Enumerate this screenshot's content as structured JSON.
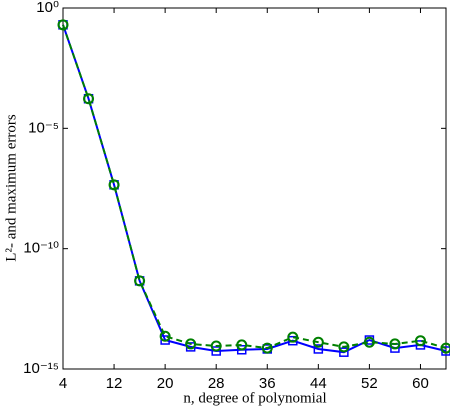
{
  "chart_data": {
    "type": "line",
    "xlabel": "n, degree of polynomial",
    "ylabel": "L²- and maximum errors",
    "log_y": true,
    "x": [
      4,
      8,
      12,
      16,
      20,
      24,
      28,
      32,
      36,
      40,
      44,
      48,
      52,
      56,
      60,
      64
    ],
    "series": [
      {
        "name": "L2 error",
        "color": "#0000ff",
        "marker": "square",
        "dashed": false,
        "values": [
          0.2,
          0.00017,
          4.5e-08,
          4.6e-12,
          1.6e-14,
          8.3e-15,
          5.6e-15,
          6.3e-15,
          6.8e-15,
          1.5e-14,
          6.8e-15,
          5e-15,
          1.6e-14,
          7.4e-15,
          1e-14,
          5.6e-15
        ]
      },
      {
        "name": "maximum error",
        "color": "#008000",
        "marker": "circle",
        "dashed": true,
        "values": [
          0.2,
          0.00017,
          4.5e-08,
          4.6e-12,
          2.3e-14,
          1.1e-14,
          9e-15,
          1e-14,
          7.4e-15,
          2.1e-14,
          1.3e-14,
          8.3e-15,
          1.3e-14,
          1.1e-14,
          1.5e-14,
          7.4e-15
        ]
      }
    ],
    "xlim": [
      4,
      64
    ],
    "xticks": [
      4,
      12,
      20,
      28,
      36,
      44,
      52,
      60
    ],
    "ylim": [
      1e-15,
      1
    ],
    "yticks": [
      {
        "value": 1e-15,
        "label": "10⁻¹⁵"
      },
      {
        "value": 1e-10,
        "label": "10⁻¹⁰"
      },
      {
        "value": 1e-05,
        "label": "10⁻⁵"
      },
      {
        "value": 1,
        "label": "10⁰"
      }
    ]
  }
}
